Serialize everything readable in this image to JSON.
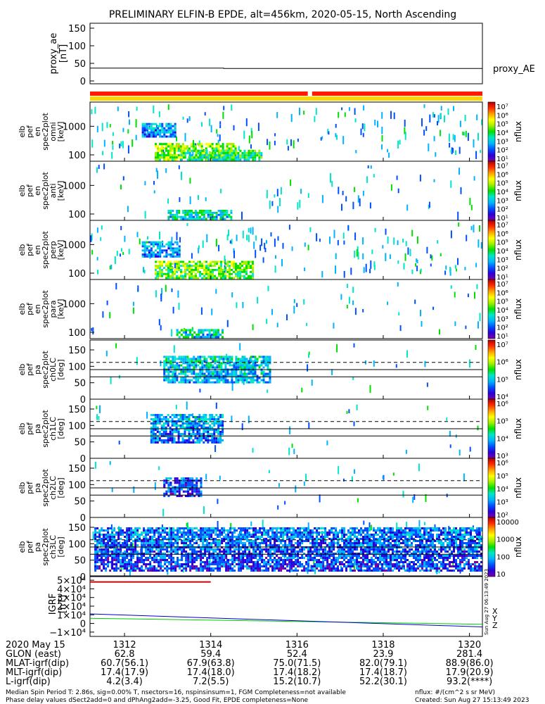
{
  "title": "PRELIMINARY ELFIN-B EPDE, alt=456km, 2020-05-15, North Ascending",
  "colors": {
    "bar_red": "#ff1a00",
    "bar_yellow": "#ffd700",
    "ae_line": "#000000",
    "igrf_x": "#cc0000",
    "igrf_y": "#00cc00",
    "igrf_z": "#0000cc"
  },
  "colorbar_stops": [
    "#ffffff",
    "#7b00a8",
    "#2a00d8",
    "#0050ff",
    "#00b4ff",
    "#00e6c8",
    "#00e000",
    "#a0f000",
    "#ffff00",
    "#ffa000",
    "#ff2a00",
    "#b00000"
  ],
  "ae_panel": {
    "ylabel_line1": "proxy_ae",
    "ylabel_line2": "[nT]",
    "yticks": [
      "150",
      "100",
      "50",
      "0"
    ],
    "legend": "proxy_AE"
  },
  "status_bars": {
    "red_gap_minutes": [
      1316.25,
      1316.35
    ]
  },
  "spec_panels": [
    {
      "ylabel": [
        "elb",
        "pef",
        "en",
        "spec2plot",
        "omni",
        "[keV]"
      ],
      "yticks": [
        "1000",
        "100"
      ],
      "cb_labels": [
        "10⁷",
        "10⁶",
        "10⁵",
        "10⁴",
        "10³",
        "10²",
        "10¹"
      ],
      "cb_title": "nflux"
    },
    {
      "ylabel": [
        "elb",
        "pef",
        "en",
        "spec2plot",
        "anti",
        "[keV]"
      ],
      "yticks": [
        "1000",
        "100"
      ],
      "cb_labels": [
        "10⁷",
        "10⁶",
        "10⁵",
        "10⁴",
        "10³",
        "10²",
        "10¹"
      ],
      "cb_title": "nflux"
    },
    {
      "ylabel": [
        "elb",
        "pef",
        "en",
        "spec2plot",
        "perp",
        "[keV]"
      ],
      "yticks": [
        "1000",
        "100"
      ],
      "cb_labels": [
        "10⁷",
        "10⁶",
        "10⁵",
        "10⁴",
        "10³",
        "10²",
        "10¹"
      ],
      "cb_title": "nflux"
    },
    {
      "ylabel": [
        "elb",
        "pef",
        "en",
        "spec2plot",
        "para",
        "[keV]"
      ],
      "yticks": [
        "1000",
        "100"
      ],
      "cb_labels": [
        "10⁷",
        "10⁶",
        "10⁵",
        "10⁴",
        "10³",
        "10²",
        "10¹"
      ],
      "cb_title": "nflux"
    }
  ],
  "pa_panels": [
    {
      "ylabel": [
        "elb",
        "pef",
        "pa",
        "spec2plot",
        "ch0LC",
        "[deg]"
      ],
      "yticks": [
        "150",
        "100",
        "50",
        "0"
      ],
      "cb_labels": [
        "10⁷",
        "10⁶",
        "10⁵",
        "10⁴"
      ],
      "cb_title": "nflux"
    },
    {
      "ylabel": [
        "elb",
        "pef",
        "pa",
        "spec2plot",
        "ch1LC",
        "[deg]"
      ],
      "yticks": [
        "150",
        "100",
        "50",
        "0"
      ],
      "cb_labels": [
        "10⁶",
        "10⁵",
        "10⁴",
        "10³"
      ],
      "cb_title": "nflux"
    },
    {
      "ylabel": [
        "elb",
        "pef",
        "pa",
        "spec2plot",
        "ch2LC",
        "[deg]"
      ],
      "yticks": [
        "150",
        "100",
        "50",
        "0"
      ],
      "cb_labels": [
        "10⁶",
        "10⁵",
        "10⁴",
        "10³",
        "10²"
      ],
      "cb_title": "nflux"
    },
    {
      "ylabel": [
        "elb",
        "pef",
        "pa",
        "spec2plot",
        "ch3LC",
        "[deg]"
      ],
      "yticks": [
        "150",
        "100",
        "50",
        "0"
      ],
      "cb_labels": [
        "10000",
        "1000",
        "100",
        "10"
      ],
      "cb_title": "nflux"
    }
  ],
  "igrf_panel": {
    "ylabel_line1": "IGRF",
    "ylabel_line2": "[nT]",
    "yticks": [
      "5×10⁴",
      "4×10⁴",
      "3×10⁴",
      "2×10⁴",
      "1×10⁴",
      "0",
      "−1×10⁴"
    ],
    "legend": [
      "X",
      "Y",
      "Z"
    ],
    "stamp": "Sun Aug 27 06:13:49 2023"
  },
  "xaxis": {
    "row_labels": [
      "2020 May 15",
      "GLON (east)",
      "MLAT-igrf(dip)",
      "MLT-igrf(dip)",
      "L-igrf(dip)"
    ],
    "columns": [
      {
        "time": "1312",
        "minute": 1312,
        "glon": "62.8",
        "mlat": "60.7(56.1)",
        "mlt": "17.4(17.9)",
        "l": "4.2(3.4)"
      },
      {
        "time": "1314",
        "minute": 1314,
        "glon": "59.4",
        "mlat": "67.9(63.8)",
        "mlt": "17.4(18.0)",
        "l": "7.2(5.5)"
      },
      {
        "time": "1316",
        "minute": 1316,
        "glon": "52.4",
        "mlat": "75.0(71.5)",
        "mlt": "17.4(18.2)",
        "l": "15.2(10.7)"
      },
      {
        "time": "1318",
        "minute": 1318,
        "glon": "23.9",
        "mlat": "82.0(79.1)",
        "mlt": "17.4(18.7)",
        "l": "52.2(30.1)"
      },
      {
        "time": "1320",
        "minute": 1320,
        "glon": "281.4",
        "mlat": "88.9(86.0)",
        "mlt": "17.9(20.9)",
        "l": "93.2(****)"
      }
    ]
  },
  "footer": {
    "line1": "Median Spin Period T: 2.86s, sig=0.00% T, nsectors=16, nspinsinsum=1, FGM Completeness=not available",
    "line2": "Phase delay values dSect2add=0 and dPhAng2add=-3.25, Good Fit, EPDE completeness=None",
    "units": "nflux: #/(cm^2 s sr MeV)",
    "created": "Created: Sun Aug 27 15:13:49 2023"
  },
  "chart_data": {
    "type": "heatmap",
    "title": "PRELIMINARY ELFIN-B EPDE, alt=456km, 2020-05-15, North Ascending",
    "x_unit": "minutes of 2020-05-15 (1312 = 13:12 UT)",
    "xlim": [
      1311.2,
      1320.3
    ],
    "proxy_ae": {
      "x": [
        1311.2,
        1314.3,
        1314.3,
        1320.3
      ],
      "y": [
        33,
        33,
        32,
        32
      ],
      "ylim": [
        0,
        155
      ]
    },
    "energy_ylim_keV": [
      60,
      7000
    ],
    "pa_ylim_deg": [
      0,
      180
    ],
    "pa_reference_lines_deg": {
      "dashed": [
        112
      ],
      "solid": [
        90,
        68
      ]
    },
    "electron_flux_regions": [
      {
        "panel": "omni",
        "t": [
          1312.4,
          1313.2
        ],
        "e_keV": [
          400,
          1300
        ],
        "level": 0.32
      },
      {
        "panel": "omni",
        "t": [
          1312.7,
          1314.6
        ],
        "e_keV": [
          62,
          260
        ],
        "level": 0.62
      },
      {
        "panel": "omni",
        "t": [
          1313.3,
          1315.2
        ],
        "e_keV": [
          62,
          150
        ],
        "level": 0.5
      },
      {
        "panel": "anti",
        "t": [
          1313.0,
          1314.5
        ],
        "e_keV": [
          62,
          140
        ],
        "level": 0.42
      },
      {
        "panel": "perp",
        "t": [
          1312.4,
          1313.3
        ],
        "e_keV": [
          350,
          1300
        ],
        "level": 0.32
      },
      {
        "panel": "perp",
        "t": [
          1312.7,
          1315.0
        ],
        "e_keV": [
          62,
          270
        ],
        "level": 0.6
      },
      {
        "panel": "para",
        "t": [
          1313.2,
          1314.3
        ],
        "e_keV": [
          62,
          130
        ],
        "level": 0.42
      },
      {
        "panel": "ch0LC",
        "t": [
          1312.9,
          1315.4
        ],
        "pa_deg": [
          48,
          132
        ],
        "level": 0.38
      },
      {
        "panel": "ch1LC",
        "t": [
          1312.6,
          1314.3
        ],
        "pa_deg": [
          45,
          135
        ],
        "level": 0.32
      },
      {
        "panel": "ch2LC",
        "t": [
          1312.9,
          1313.8
        ],
        "pa_deg": [
          62,
          122
        ],
        "level": 0.22
      },
      {
        "panel": "ch3LC",
        "t": [
          1311.3,
          1320.3
        ],
        "pa_deg": [
          15,
          150
        ],
        "level": 0.25
      }
    ],
    "igrf_nT": {
      "x": [
        1311.2,
        1320.3
      ],
      "ylim": [
        -15000,
        55000
      ],
      "X": [
        48000,
        48000
      ],
      "X_end": 1314.0,
      "Y": [
        6000,
        -1000
      ],
      "Z": [
        11000,
        -4000
      ]
    }
  }
}
